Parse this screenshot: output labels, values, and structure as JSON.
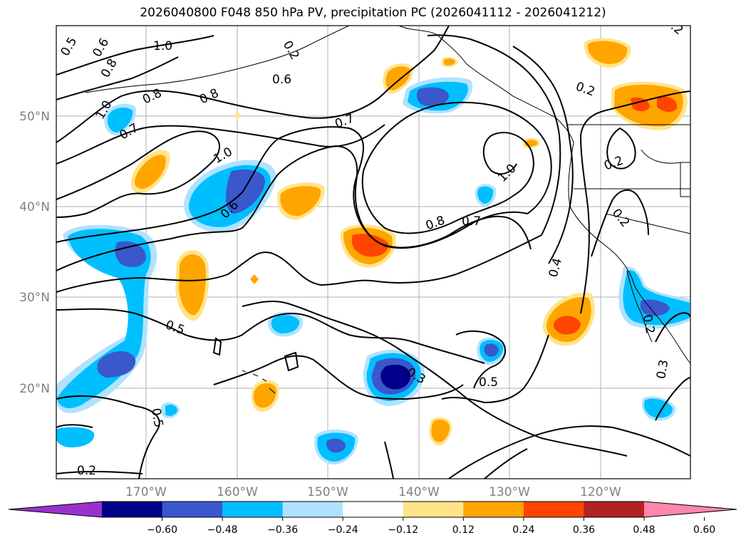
{
  "title": "2026040800 F048 850 hPa PV, precipitation PC (2026041112 - 2026041212)",
  "lon_ticks": [
    "170°W",
    "160°W",
    "150°W",
    "140°W",
    "130°W",
    "120°W"
  ],
  "lat_ticks": [
    "20°N",
    "30°N",
    "40°N",
    "50°N"
  ],
  "colorbar": {
    "ticks": [
      "−0.60",
      "−0.48",
      "−0.36",
      "−0.24",
      "−0.12",
      "0.12",
      "0.24",
      "0.36",
      "0.48",
      "0.60"
    ],
    "colors": [
      "#9932cc",
      "#00008b",
      "#3a57cc",
      "#00bfff",
      "#b0e2ff",
      "#ffffff",
      "#ffe48a",
      "#ffa500",
      "#ff4500",
      "#b22222",
      "#ff88aa"
    ]
  },
  "contour_labels": [
    "0.5",
    "0.6",
    "1.0",
    "0.8",
    "1.0",
    "0.7",
    "0.8",
    "0.6",
    "0.8",
    "1.0",
    "0.6",
    "0.7",
    "1.0",
    "0.8",
    "0.7",
    "0.2",
    "0.2",
    "0.2",
    "0.4",
    "0.5",
    "0.5",
    "0.3",
    "0.5",
    "0.2",
    "0.3",
    "0.2",
    "0.2",
    "0.2"
  ]
}
